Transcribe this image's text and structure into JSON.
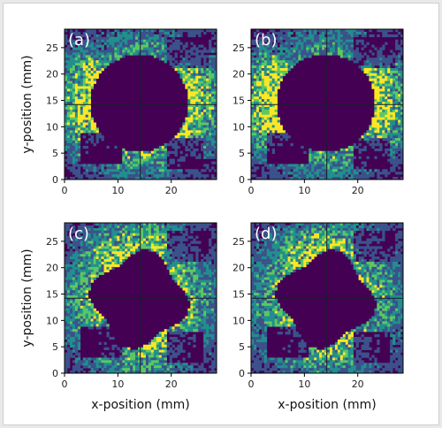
{
  "chart_data": [
    {
      "type": "heatmap",
      "panel_label": "(a)",
      "xlabel": "",
      "ylabel": "y-position (mm)",
      "xlim": [
        0,
        28.5
      ],
      "ylim": [
        0,
        28.5
      ],
      "xticks": [
        0,
        10,
        20
      ],
      "yticks": [
        0,
        5,
        10,
        15,
        20,
        25
      ],
      "crosshair": {
        "x": 14.2,
        "y": 14.2
      },
      "hole": {
        "shape": "round",
        "cx": 14.0,
        "cy": 14.5,
        "radius": 9.2
      },
      "intensity": {
        "left_lobe": 0.95,
        "right_lobe": 0.95,
        "top": 0.45,
        "bottom": 0.55,
        "background": 0.3
      }
    },
    {
      "type": "heatmap",
      "panel_label": "(b)",
      "xlabel": "",
      "ylabel": "",
      "xlim": [
        0,
        28.5
      ],
      "ylim": [
        0,
        28.5
      ],
      "xticks": [
        0,
        10,
        20
      ],
      "yticks": [
        0,
        5,
        10,
        15,
        20,
        25
      ],
      "crosshair": {
        "x": 14.2,
        "y": 14.2
      },
      "hole": {
        "shape": "round",
        "cx": 14.0,
        "cy": 14.5,
        "radius": 9.3
      },
      "intensity": {
        "left_lobe": 1.0,
        "right_lobe": 1.0,
        "top": 0.4,
        "bottom": 0.5,
        "background": 0.3
      }
    },
    {
      "type": "heatmap",
      "panel_label": "(c)",
      "xlabel": "x-position (mm)",
      "ylabel": "y-position (mm)",
      "xlim": [
        0,
        28.5
      ],
      "ylim": [
        0,
        28.5
      ],
      "xticks": [
        0,
        10,
        20
      ],
      "yticks": [
        0,
        5,
        10,
        15,
        20,
        25
      ],
      "crosshair": {
        "x": 14.2,
        "y": 14.2
      },
      "hole": {
        "shape": "clover",
        "cx": 14.0,
        "cy": 14.0,
        "radius": 8.5
      },
      "intensity": {
        "left_lobe": 0.55,
        "right_lobe": 0.55,
        "top": 0.75,
        "bottom": 0.65,
        "background": 0.4
      }
    },
    {
      "type": "heatmap",
      "panel_label": "(d)",
      "xlabel": "x-position (mm)",
      "ylabel": "",
      "xlim": [
        0,
        28.5
      ],
      "ylim": [
        0,
        28.5
      ],
      "xticks": [
        0,
        10,
        20
      ],
      "yticks": [
        0,
        5,
        10,
        15,
        20,
        25
      ],
      "crosshair": {
        "x": 14.2,
        "y": 14.2
      },
      "hole": {
        "shape": "clover",
        "cx": 14.0,
        "cy": 14.0,
        "radius": 8.5
      },
      "intensity": {
        "left_lobe": 0.5,
        "right_lobe": 0.5,
        "top": 0.7,
        "bottom": 0.6,
        "background": 0.4
      }
    }
  ],
  "colors": {
    "background": "#440154",
    "low": "#3b528b",
    "mid": "#21908d",
    "high": "#5dc863",
    "peak": "#fde725",
    "crosshair": "#1a1a2e"
  }
}
